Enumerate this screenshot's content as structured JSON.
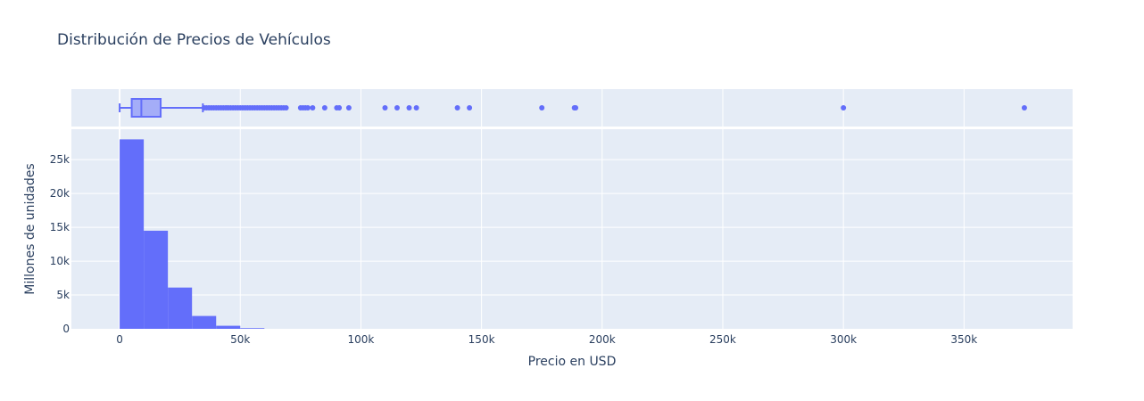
{
  "chart_data": {
    "type": "bar",
    "title": "Distribución de Precios de Vehículos",
    "xlabel": "Precio en USD",
    "ylabel": "Millones de unidades",
    "xlim": [
      -20000,
      395000
    ],
    "ylim": [
      0,
      29500
    ],
    "x_ticks": [
      0,
      50000,
      100000,
      150000,
      200000,
      250000,
      300000,
      350000
    ],
    "x_tick_labels": [
      "0",
      "50k",
      "100k",
      "150k",
      "200k",
      "250k",
      "300k",
      "350k"
    ],
    "y_ticks": [
      0,
      5000,
      10000,
      15000,
      20000,
      25000
    ],
    "y_tick_labels": [
      "0",
      "5k",
      "10k",
      "15k",
      "20k",
      "25k"
    ],
    "grid": true,
    "colors": {
      "series": "#636efa",
      "plot_bg": "#e5ecf6",
      "text": "#2a3f5f"
    },
    "histogram": {
      "bin_width": 10000,
      "bins": [
        {
          "start": 0,
          "count": 28000
        },
        {
          "start": 10000,
          "count": 14500
        },
        {
          "start": 20000,
          "count": 6100
        },
        {
          "start": 30000,
          "count": 1900
        },
        {
          "start": 40000,
          "count": 450
        },
        {
          "start": 50000,
          "count": 100
        }
      ]
    },
    "box": {
      "min": 0,
      "q1": 5000,
      "median": 9000,
      "q3": 17000,
      "upper_fence": 34500,
      "outliers": [
        35000,
        36000,
        37000,
        38000,
        39000,
        40000,
        41000,
        42000,
        43000,
        44000,
        45000,
        46000,
        47000,
        48000,
        49000,
        50000,
        51000,
        52000,
        53000,
        54000,
        55000,
        56000,
        57000,
        58000,
        59000,
        60000,
        61000,
        62000,
        63000,
        64000,
        65000,
        66000,
        67000,
        68000,
        69000,
        75000,
        76000,
        77000,
        78000,
        80000,
        85000,
        90000,
        91000,
        95000,
        110000,
        115000,
        120000,
        123000,
        140000,
        145000,
        175000,
        188500,
        189000,
        300000,
        375000
      ]
    }
  }
}
